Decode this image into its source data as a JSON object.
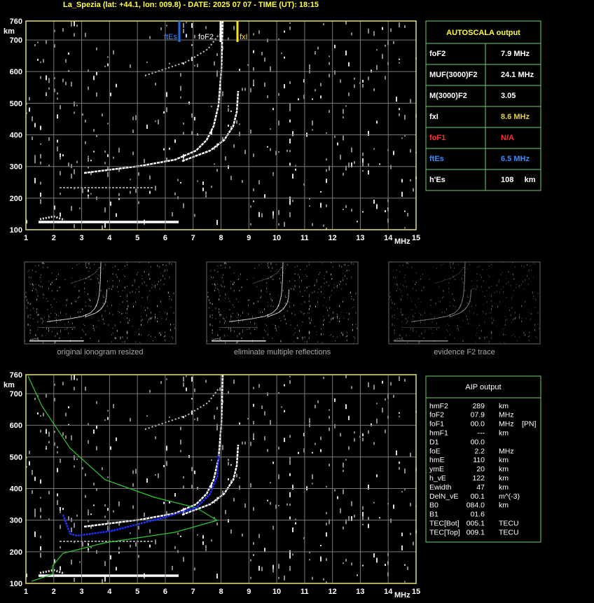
{
  "header": "La_Spezia (lat: +44.1, lon: 009.8) - DATE: 2025 07 07 - TIME (UT): 18:15",
  "ionogram": {
    "ylim": [
      100,
      760
    ],
    "yticks": [
      100,
      200,
      300,
      400,
      500,
      600,
      700,
      760
    ],
    "y_unit": "km",
    "xlim": [
      1,
      15
    ],
    "xticks": [
      1,
      2,
      3,
      4,
      5,
      6,
      7,
      8,
      9,
      10,
      11,
      12,
      13,
      14,
      15
    ],
    "x_unit": "MHz",
    "markers": [
      "ftEs",
      "foF2",
      "fxI"
    ]
  },
  "autoscala": {
    "title": "AUTOSCALA output",
    "rows": [
      [
        "foF2",
        "7.9 MHz"
      ],
      [
        "MUF(3000)F2",
        "24.1 MHz"
      ],
      [
        "M(3000)F2",
        "3.05"
      ],
      [
        "fxI",
        "8.6 MHz"
      ],
      [
        "foF1",
        "N/A"
      ],
      [
        "ftEs",
        "6.5 MHz"
      ],
      [
        "h'Es",
        "108     km"
      ]
    ]
  },
  "thumbnails": [
    "original ionogram resized",
    "eliminate multiple reflections",
    "evidence F2 trace"
  ],
  "aip": {
    "title": "AIP output",
    "rows": [
      [
        "hmF2",
        "289",
        "km"
      ],
      [
        "foF2",
        "07.9",
        "MHz"
      ],
      [
        "foF1",
        "00.0",
        "MHz",
        "[PN]"
      ],
      [
        "hmF1",
        "---",
        "km"
      ],
      [
        "D1",
        "00.0"
      ],
      [
        "foE",
        "2.2",
        "MHz"
      ],
      [
        "hmE",
        "110",
        "km"
      ],
      [
        "ymE",
        "20",
        "km"
      ],
      [
        "h_vE",
        "122",
        "km"
      ],
      [
        "Ewidth",
        "47",
        "km"
      ],
      [
        "DelN_vE",
        "00.1",
        "m^(-3)"
      ],
      [
        "B0",
        "084.0",
        "km"
      ],
      [
        "B1",
        "01.6"
      ],
      [
        "TEC[Bot]",
        "005.1",
        "TECU"
      ],
      [
        "TEC[Top]",
        "009.1",
        "TECU"
      ]
    ]
  }
}
